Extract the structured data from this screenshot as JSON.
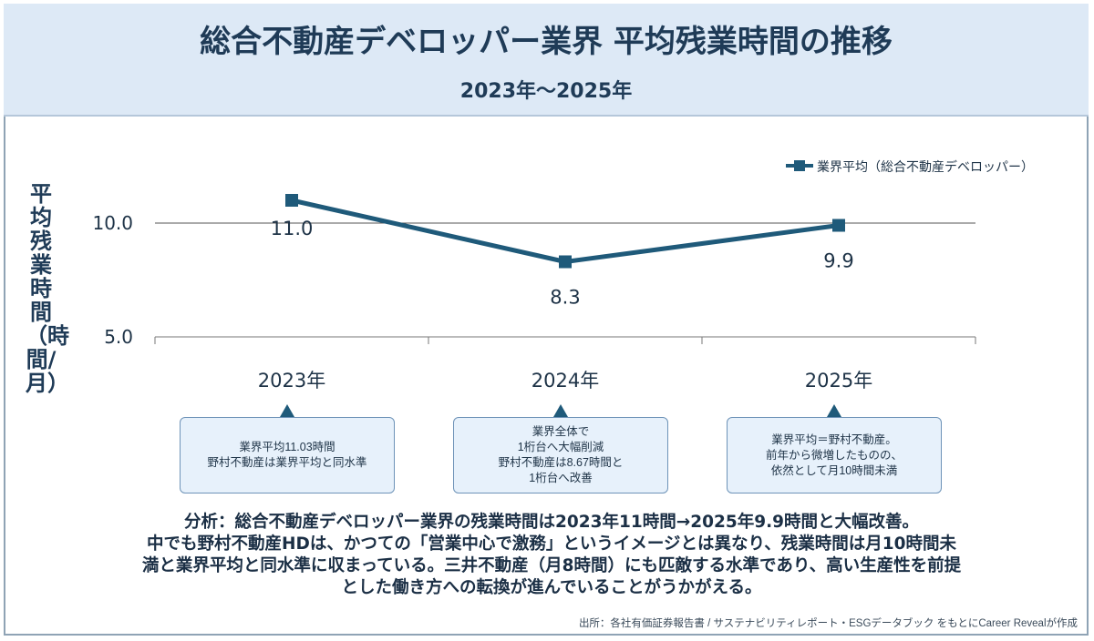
{
  "header": {
    "title": "総合不動産デベロッパー業界 平均残業時間の推移",
    "subtitle": "2023年〜2025年"
  },
  "colors": {
    "series": "#1f5a7a",
    "header_bg": "#dde9f6",
    "callout_bg": "#e7f1fb"
  },
  "chart_data": {
    "type": "line",
    "ylabel": "平均残業時間（時間/月）",
    "categories": [
      "2023年",
      "2024年",
      "2025年"
    ],
    "series": [
      {
        "name": "業界平均（総合不動産デベロッパー）",
        "values": [
          11.0,
          8.3,
          9.9
        ]
      }
    ],
    "data_labels": [
      "11.0",
      "8.3",
      "9.9"
    ],
    "y_ticks": [
      "5.0",
      "10.0"
    ],
    "ylim": [
      5.0,
      13.0
    ],
    "gridlines": [
      10.0
    ],
    "legend": "top-right"
  },
  "callouts": [
    {
      "text": "業界平均11.03時間\n野村不動産は業界平均と同水準"
    },
    {
      "text": "業界全体で\n1桁台へ大幅削減\n野村不動産は8.67時間と\n1桁台へ改善"
    },
    {
      "text": "業界平均＝野村不動産。\n前年から微増したものの、\n依然として月10時間未満"
    }
  ],
  "analysis": "分析：総合不動産デベロッパー業界の残業時間は2023年11時間→2025年9.9時間と大幅改善。\n中でも野村不動産HDは、かつての「営業中心で激務」というイメージとは異なり、残業時間は月10時間未\n満と業界平均と同水準に収まっている。三井不動産（月8時間）にも匹敵する水準であり、高い生産性を前提\nとした働き方への転換が進んでいることがうかがえる。",
  "source": "出所：各社有価証券報告書 / サステナビリティレポート・ESGデータブック をもとにCareer Revealが作成"
}
